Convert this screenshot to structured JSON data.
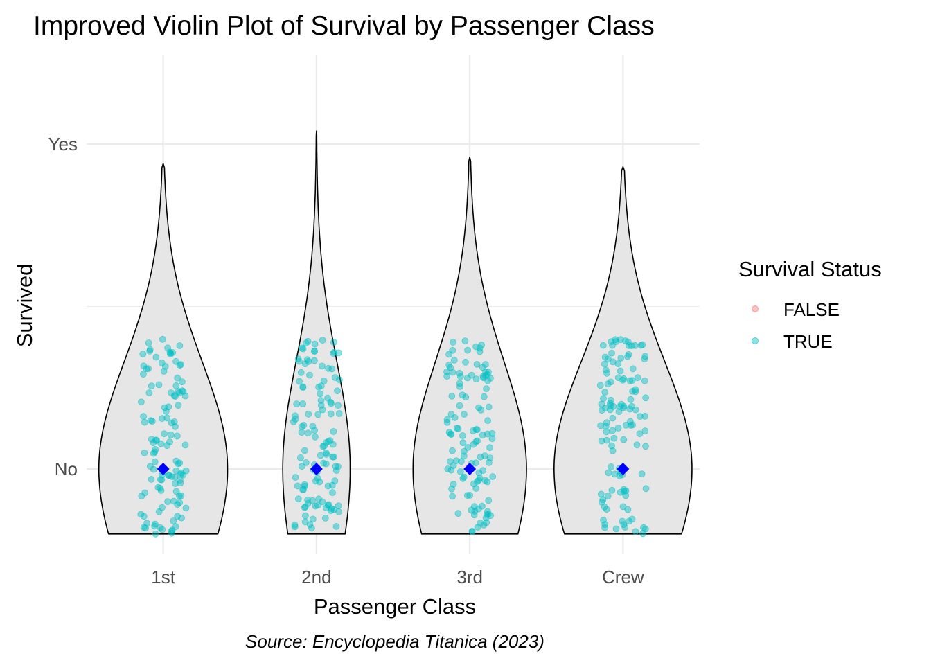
{
  "chart_data": {
    "type": "violin",
    "title": "Improved Violin Plot of Survival by Passenger Class",
    "xlabel": "Passenger Class",
    "ylabel": "Survived",
    "caption": "Source: Encyclopedia Titanica (2023)",
    "categories": [
      "1st",
      "2nd",
      "3rd",
      "Crew"
    ],
    "y_tick_labels": [
      "No",
      "Yes"
    ],
    "legend": {
      "title": "Survival Status",
      "position": "right",
      "entries": [
        {
          "label": "FALSE",
          "color": "#F8766D"
        },
        {
          "label": "TRUE",
          "color": "#00BFC4"
        }
      ]
    },
    "violins": [
      {
        "category": "1st",
        "y_min": 0.8,
        "y_max": 1.94,
        "peak_y": 1.0,
        "max_width": 0.84
      },
      {
        "category": "2nd",
        "y_min": 0.8,
        "y_max": 2.04,
        "peak_y": 1.0,
        "max_width": 0.44
      },
      {
        "category": "3rd",
        "y_min": 0.8,
        "y_max": 1.96,
        "peak_y": 1.0,
        "max_width": 0.74
      },
      {
        "category": "Crew",
        "y_min": 0.8,
        "y_max": 1.93,
        "peak_y": 1.0,
        "max_width": 0.9
      }
    ],
    "jitter_points": {
      "series": "TRUE",
      "color": "#00BFC4",
      "opacity": 0.45,
      "y_range": [
        0.8,
        1.4
      ],
      "points_per_category": 120,
      "x_jitter": 0.15
    },
    "mean_marker": {
      "shape": "diamond",
      "color": "#0000FF",
      "value": 1.0
    },
    "grid": true,
    "colors": {
      "violin_fill": "#E6E6E6",
      "violin_stroke": "#000000",
      "grid": "#EBEBEB"
    }
  }
}
